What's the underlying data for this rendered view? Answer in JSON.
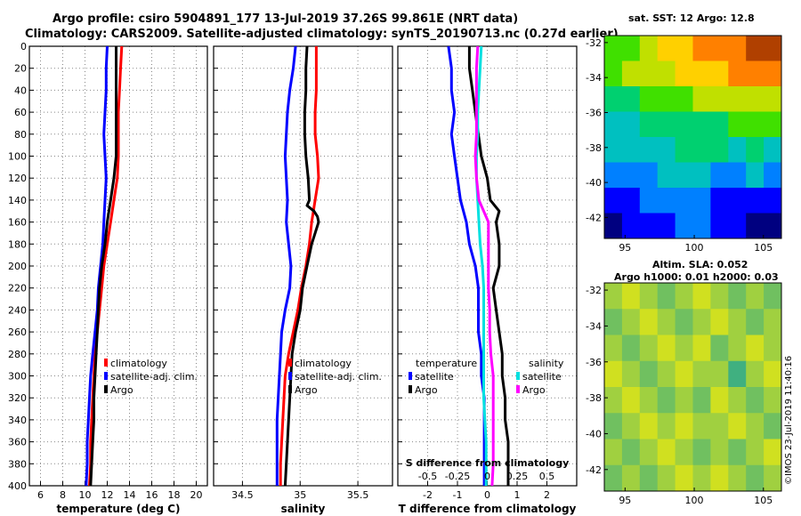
{
  "header": {
    "title_line1": "Argo profile: csiro 5904891_177 13-Jul-2019 37.26S 99.861E (NRT data)",
    "title_line2": "Climatology: CARS2009. Satellite-adjusted climatology: synTS_20190713.nc (0.27d earlier)"
  },
  "credit": "©IMOS 23-Jul-2019 11:40:16",
  "colors": {
    "climatology": "#ff0000",
    "satellite": "#0000ff",
    "argo": "#000000",
    "sat_salinity": "#00e0e0",
    "argo_salinity": "#ff00ff"
  },
  "chart_data": [
    {
      "id": "temperature",
      "type": "line",
      "xlabel": "temperature (deg C)",
      "ylabel": "",
      "xlim": [
        5,
        21
      ],
      "ylim": [
        400,
        0
      ],
      "xticks": [
        6,
        8,
        10,
        12,
        14,
        16,
        18,
        20
      ],
      "yticks": [
        0,
        20,
        40,
        60,
        80,
        100,
        120,
        140,
        160,
        180,
        200,
        220,
        240,
        260,
        280,
        300,
        320,
        340,
        360,
        380,
        400
      ],
      "grid": true,
      "legend": [
        "climatology",
        "satellite-adj. clim.",
        "Argo"
      ],
      "legend_placement": "bottom-right",
      "series": [
        {
          "name": "climatology",
          "color": "#ff0000",
          "depth": [
            0,
            20,
            40,
            60,
            80,
            100,
            120,
            140,
            160,
            180,
            200,
            220,
            240,
            260,
            280,
            300,
            320,
            340,
            360,
            380,
            400
          ],
          "values": [
            13.3,
            13.2,
            13.1,
            13.0,
            13.0,
            13.0,
            12.9,
            12.6,
            12.3,
            12.0,
            11.7,
            11.5,
            11.3,
            11.1,
            10.9,
            10.8,
            10.7,
            10.6,
            10.5,
            10.5,
            10.4
          ]
        },
        {
          "name": "satellite-adj. clim.",
          "color": "#0000ff",
          "depth": [
            0,
            20,
            40,
            60,
            80,
            100,
            120,
            140,
            160,
            180,
            200,
            220,
            240,
            260,
            280,
            300,
            320,
            340,
            360,
            380,
            400
          ],
          "values": [
            12.0,
            11.9,
            11.9,
            11.8,
            11.7,
            11.8,
            11.9,
            11.8,
            11.7,
            11.6,
            11.4,
            11.2,
            11.1,
            10.9,
            10.7,
            10.5,
            10.4,
            10.3,
            10.2,
            10.2,
            10.1
          ]
        },
        {
          "name": "Argo",
          "color": "#000000",
          "depth": [
            0,
            20,
            40,
            60,
            80,
            100,
            120,
            140,
            160,
            180,
            200,
            220,
            240,
            260,
            280,
            300,
            320,
            340,
            360,
            380,
            400
          ],
          "values": [
            12.8,
            12.8,
            12.8,
            12.8,
            12.8,
            12.8,
            12.6,
            12.3,
            12.0,
            11.8,
            11.5,
            11.3,
            11.2,
            11.1,
            11.0,
            10.9,
            10.8,
            10.8,
            10.7,
            10.6,
            10.5
          ]
        }
      ]
    },
    {
      "id": "salinity",
      "type": "line",
      "xlabel": "salinity",
      "ylabel": "",
      "xlim": [
        34.25,
        35.8
      ],
      "ylim": [
        400,
        0
      ],
      "xticks": [
        34.5,
        35,
        35.5
      ],
      "xtick_labels": [
        "34.5",
        "35",
        "35.5"
      ],
      "grid": true,
      "legend": [
        "climatology",
        "satellite-adj. clim.",
        "Argo"
      ],
      "legend_placement": "bottom-right",
      "series": [
        {
          "name": "climatology",
          "color": "#ff0000",
          "depth": [
            0,
            20,
            40,
            60,
            80,
            100,
            120,
            140,
            160,
            180,
            200,
            220,
            240,
            260,
            280,
            300,
            320,
            340,
            360,
            380,
            400
          ],
          "values": [
            35.14,
            35.14,
            35.14,
            35.13,
            35.13,
            35.15,
            35.16,
            35.13,
            35.1,
            35.08,
            35.05,
            35.01,
            34.98,
            34.94,
            34.9,
            34.87,
            34.86,
            34.85,
            34.84,
            34.83,
            34.83
          ]
        },
        {
          "name": "satellite-adj. clim.",
          "color": "#0000ff",
          "depth": [
            0,
            20,
            40,
            60,
            80,
            100,
            120,
            140,
            160,
            180,
            200,
            220,
            240,
            260,
            280,
            300,
            320,
            340,
            360,
            380,
            400
          ],
          "values": [
            34.96,
            34.94,
            34.91,
            34.89,
            34.88,
            34.87,
            34.88,
            34.89,
            34.88,
            34.9,
            34.92,
            34.91,
            34.87,
            34.84,
            34.83,
            34.82,
            34.81,
            34.8,
            34.8,
            34.8,
            34.8
          ]
        },
        {
          "name": "Argo",
          "color": "#000000",
          "depth": [
            0,
            20,
            40,
            60,
            80,
            100,
            120,
            140,
            145,
            150,
            155,
            160,
            180,
            200,
            220,
            240,
            260,
            280,
            300,
            320,
            340,
            360,
            380,
            400
          ],
          "values": [
            35.06,
            35.05,
            35.05,
            35.04,
            35.04,
            35.05,
            35.07,
            35.08,
            35.06,
            35.12,
            35.15,
            35.16,
            35.1,
            35.06,
            35.02,
            35.0,
            34.96,
            34.93,
            34.92,
            34.91,
            34.9,
            34.89,
            34.88,
            34.87
          ]
        }
      ]
    },
    {
      "id": "difference",
      "type": "line",
      "xlabel": "T difference from climatology",
      "x2label": "S difference from climatology",
      "ylabel": "",
      "xlim": [
        -3,
        3
      ],
      "ylim": [
        400,
        0
      ],
      "xticks": [
        -2,
        -1,
        0,
        1,
        2
      ],
      "x2ticks": [
        -0.5,
        -0.25,
        0,
        0.25,
        0.5
      ],
      "x2tick_labels": [
        "-0.5",
        "-0.25",
        "0",
        "0.25",
        "0.5"
      ],
      "grid": true,
      "legend_groups": [
        {
          "title": "temperature",
          "entries": [
            "satellite",
            "Argo"
          ]
        },
        {
          "title": "salinity",
          "entries": [
            "satellite",
            "Argo"
          ]
        }
      ],
      "legend_placement": "bottom",
      "series": [
        {
          "name": "temperature satellite",
          "color": "#0000ff",
          "depth": [
            0,
            20,
            40,
            60,
            80,
            100,
            120,
            140,
            160,
            180,
            200,
            220,
            240,
            260,
            280,
            300,
            320,
            340,
            360,
            380,
            400
          ],
          "values": [
            -1.3,
            -1.2,
            -1.2,
            -1.1,
            -1.2,
            -1.1,
            -1.0,
            -0.9,
            -0.7,
            -0.6,
            -0.4,
            -0.3,
            -0.3,
            -0.3,
            -0.2,
            -0.2,
            -0.1,
            -0.1,
            -0.1,
            -0.1,
            -0.1
          ]
        },
        {
          "name": "temperature Argo",
          "color": "#000000",
          "depth": [
            0,
            20,
            40,
            60,
            80,
            100,
            120,
            140,
            150,
            160,
            180,
            200,
            220,
            240,
            260,
            280,
            300,
            320,
            340,
            360,
            380,
            400
          ],
          "values": [
            -0.6,
            -0.6,
            -0.5,
            -0.4,
            -0.3,
            -0.2,
            0.0,
            0.1,
            0.4,
            0.3,
            0.4,
            0.4,
            0.2,
            0.3,
            0.4,
            0.5,
            0.5,
            0.6,
            0.6,
            0.7,
            0.7,
            0.7
          ]
        },
        {
          "name": "salinity satellite",
          "color": "#00e0e0",
          "depth": [
            0,
            20,
            40,
            60,
            80,
            100,
            120,
            140,
            160,
            180,
            200,
            220,
            240,
            260,
            280,
            300,
            320,
            340,
            360,
            380,
            400
          ],
          "values": [
            -0.05,
            -0.06,
            -0.07,
            -0.08,
            -0.08,
            -0.09,
            -0.09,
            -0.08,
            -0.07,
            -0.06,
            -0.04,
            -0.03,
            -0.03,
            -0.03,
            -0.03,
            -0.03,
            -0.03,
            -0.02,
            -0.01,
            -0.01,
            -0.01
          ]
        },
        {
          "name": "salinity Argo",
          "color": "#ff00ff",
          "depth": [
            0,
            20,
            40,
            60,
            80,
            100,
            120,
            140,
            160,
            180,
            200,
            220,
            240,
            260,
            280,
            300,
            320,
            340,
            360,
            380,
            400
          ],
          "values": [
            -0.08,
            -0.09,
            -0.09,
            -0.09,
            -0.09,
            -0.1,
            -0.09,
            -0.07,
            0.01,
            0.01,
            0.01,
            0.01,
            0.02,
            0.02,
            0.03,
            0.05,
            0.05,
            0.05,
            0.05,
            0.05,
            0.04
          ]
        }
      ]
    },
    {
      "id": "sst_map",
      "type": "heatmap",
      "title": "sat. SST: 12 Argo: 12.8",
      "xticks": [
        95,
        100,
        105
      ],
      "yticks": [
        -32,
        -34,
        -36,
        -38,
        -40,
        -42
      ],
      "xlim": [
        93.5,
        106.3
      ],
      "ylim": [
        -43.2,
        -31.6
      ],
      "colormap": [
        "#000080",
        "#0000ff",
        "#0080ff",
        "#00c0c0",
        "#00d070",
        "#40e000",
        "#c0e000",
        "#ffd000",
        "#ff8000",
        "#b04000"
      ],
      "field_rows_north_to_south": [
        [
          5,
          5,
          6,
          7,
          7,
          8,
          8,
          8,
          9,
          9
        ],
        [
          5,
          6,
          6,
          6,
          7,
          7,
          7,
          8,
          8,
          8
        ],
        [
          4,
          4,
          5,
          5,
          5,
          6,
          6,
          6,
          6,
          6
        ],
        [
          3,
          3,
          4,
          4,
          4,
          4,
          4,
          5,
          5,
          5
        ],
        [
          3,
          3,
          3,
          3,
          4,
          4,
          4,
          3,
          4,
          3
        ],
        [
          2,
          2,
          2,
          3,
          3,
          3,
          2,
          2,
          3,
          2
        ],
        [
          1,
          1,
          2,
          2,
          2,
          2,
          1,
          1,
          1,
          1
        ],
        [
          0,
          1,
          1,
          1,
          2,
          2,
          1,
          1,
          0,
          0
        ]
      ]
    },
    {
      "id": "sla_map",
      "type": "heatmap",
      "title_line1": "Altim. SLA: 0.052",
      "title_line2": "Argo h1000: 0.01 h2000: 0.03",
      "xticks": [
        95,
        100,
        105
      ],
      "yticks": [
        -32,
        -34,
        -36,
        -38,
        -40,
        -42
      ],
      "xlim": [
        93.5,
        106.3
      ],
      "ylim": [
        -43.2,
        -31.6
      ],
      "colormap": [
        "#20a0a0",
        "#40b080",
        "#70c060",
        "#a0d040",
        "#d0e020",
        "#f0f000"
      ],
      "field_rows_north_to_south": [
        [
          3,
          4,
          3,
          2,
          3,
          4,
          3,
          2,
          3,
          2
        ],
        [
          2,
          3,
          4,
          3,
          2,
          3,
          4,
          3,
          2,
          3
        ],
        [
          3,
          2,
          3,
          4,
          3,
          4,
          2,
          3,
          4,
          3
        ],
        [
          4,
          3,
          2,
          3,
          4,
          3,
          3,
          1,
          3,
          4
        ],
        [
          3,
          4,
          3,
          2,
          3,
          2,
          4,
          3,
          2,
          3
        ],
        [
          2,
          3,
          4,
          3,
          4,
          3,
          3,
          4,
          3,
          2
        ],
        [
          3,
          2,
          3,
          4,
          3,
          2,
          3,
          2,
          3,
          4
        ],
        [
          2,
          3,
          2,
          3,
          4,
          3,
          4,
          3,
          2,
          3
        ]
      ]
    }
  ]
}
